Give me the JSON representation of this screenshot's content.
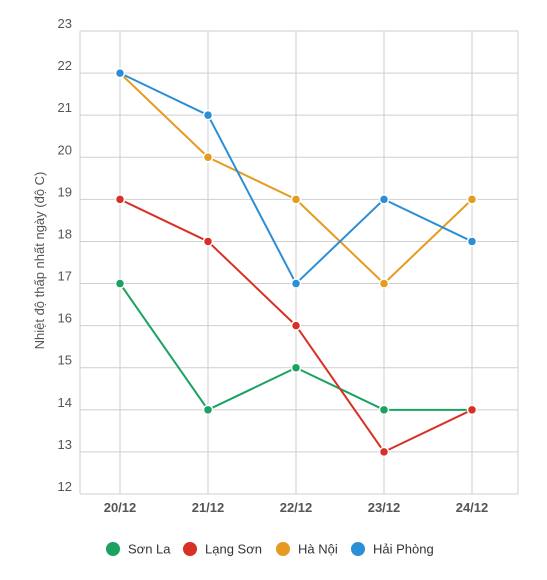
{
  "chart_data": {
    "type": "line",
    "title": "",
    "xlabel": "",
    "ylabel": "Nhiệt độ thấp nhất ngày (độ C)",
    "categories": [
      "20/12",
      "21/12",
      "22/12",
      "23/12",
      "24/12"
    ],
    "ylim": [
      12,
      23
    ],
    "yticks": [
      12,
      13,
      14,
      15,
      16,
      17,
      18,
      19,
      20,
      21,
      22,
      23
    ],
    "grid": true,
    "legend_position": "bottom",
    "series": [
      {
        "name": "Sơn La",
        "color": "#1aa260",
        "values": [
          17,
          14,
          15,
          14,
          14
        ]
      },
      {
        "name": "Lạng Sơn",
        "color": "#d93025",
        "values": [
          19,
          18,
          16,
          13,
          14
        ]
      },
      {
        "name": "Hà Nội",
        "color": "#e69a1f",
        "values": [
          22,
          20,
          19,
          17,
          19
        ]
      },
      {
        "name": "Hải Phòng",
        "color": "#2b8fd8",
        "values": [
          22,
          21,
          17,
          19,
          18
        ]
      }
    ]
  }
}
